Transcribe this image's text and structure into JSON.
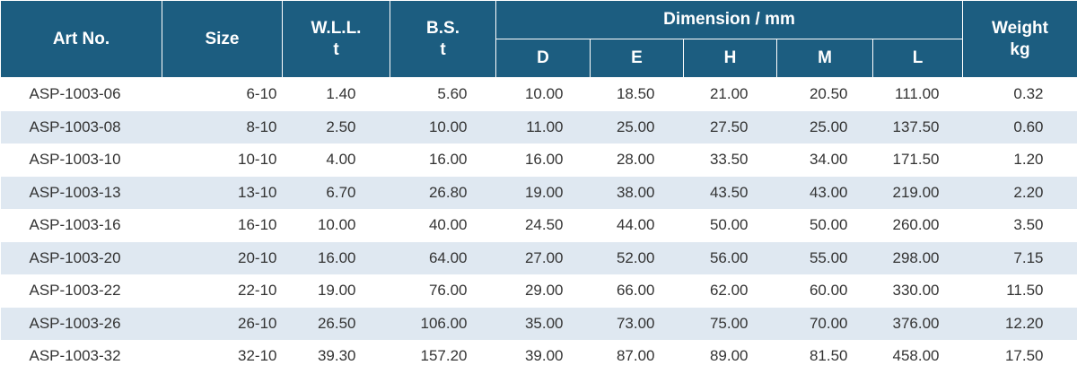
{
  "header": {
    "art_no": "Art No.",
    "size": "Size",
    "wll": "W.L.L.",
    "wll_unit": "t",
    "bs": "B.S.",
    "bs_unit": "t",
    "dimension": "Dimension / mm",
    "dim_d": "D",
    "dim_e": "E",
    "dim_h": "H",
    "dim_m": "M",
    "dim_l": "L",
    "weight": "Weight",
    "weight_unit": "kg"
  },
  "rows": [
    {
      "art": "ASP-1003-06",
      "size": "6-10",
      "wll": "1.40",
      "bs": "5.60",
      "d": "10.00",
      "e": "18.50",
      "h": "21.00",
      "m": "20.50",
      "l": "111.00",
      "w": "0.32"
    },
    {
      "art": "ASP-1003-08",
      "size": "8-10",
      "wll": "2.50",
      "bs": "10.00",
      "d": "11.00",
      "e": "25.00",
      "h": "27.50",
      "m": "25.00",
      "l": "137.50",
      "w": "0.60"
    },
    {
      "art": "ASP-1003-10",
      "size": "10-10",
      "wll": "4.00",
      "bs": "16.00",
      "d": "16.00",
      "e": "28.00",
      "h": "33.50",
      "m": "34.00",
      "l": "171.50",
      "w": "1.20"
    },
    {
      "art": "ASP-1003-13",
      "size": "13-10",
      "wll": "6.70",
      "bs": "26.80",
      "d": "19.00",
      "e": "38.00",
      "h": "43.50",
      "m": "43.00",
      "l": "219.00",
      "w": "2.20"
    },
    {
      "art": "ASP-1003-16",
      "size": "16-10",
      "wll": "10.00",
      "bs": "40.00",
      "d": "24.50",
      "e": "44.00",
      "h": "50.00",
      "m": "50.00",
      "l": "260.00",
      "w": "3.50"
    },
    {
      "art": "ASP-1003-20",
      "size": "20-10",
      "wll": "16.00",
      "bs": "64.00",
      "d": "27.00",
      "e": "52.00",
      "h": "56.00",
      "m": "55.00",
      "l": "298.00",
      "w": "7.15"
    },
    {
      "art": "ASP-1003-22",
      "size": "22-10",
      "wll": "19.00",
      "bs": "76.00",
      "d": "29.00",
      "e": "66.00",
      "h": "62.00",
      "m": "60.00",
      "l": "330.00",
      "w": "11.50"
    },
    {
      "art": "ASP-1003-26",
      "size": "26-10",
      "wll": "26.50",
      "bs": "106.00",
      "d": "35.00",
      "e": "73.00",
      "h": "75.00",
      "m": "70.00",
      "l": "376.00",
      "w": "12.20"
    },
    {
      "art": "ASP-1003-32",
      "size": "32-10",
      "wll": "39.30",
      "bs": "157.20",
      "d": "39.00",
      "e": "87.00",
      "h": "89.00",
      "m": "81.50",
      "l": "458.00",
      "w": "17.50"
    }
  ],
  "colors": {
    "header_bg": "#1c5d80",
    "header_text": "#ffffff",
    "stripe": "#dfe8f1",
    "body_text": "#333333"
  }
}
